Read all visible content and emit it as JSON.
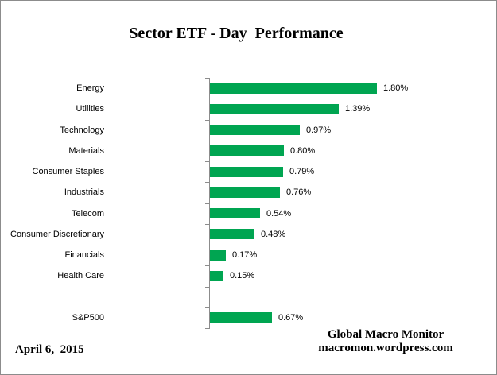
{
  "title": "Sector ETF - Day  Performance",
  "date_label": "April 6,  2015",
  "attribution": {
    "line1": "Global Macro Monitor",
    "line2": "macromon.wordpress.com"
  },
  "colors": {
    "bar": "#00a551",
    "axis": "#8c8c8c",
    "frame_border": "#8c8c8c",
    "text": "#000000"
  },
  "chart_data": {
    "type": "bar",
    "orientation": "horizontal",
    "title": "Sector ETF - Day  Performance",
    "xlabel": "",
    "ylabel": "",
    "xlim": [
      0,
      1.8
    ],
    "grid": false,
    "legend": false,
    "value_label_format": "percent",
    "categories": [
      "Energy",
      "Utilities",
      "Technology",
      "Materials",
      "Consumer Staples",
      "Industrials",
      "Telecom",
      "Consumer Discretionary",
      "Financials",
      "Health Care",
      "",
      "S&P500"
    ],
    "values": [
      1.8,
      1.39,
      0.97,
      0.8,
      0.79,
      0.76,
      0.54,
      0.48,
      0.17,
      0.15,
      null,
      0.67
    ],
    "value_labels": [
      "1.80%",
      "1.39%",
      "0.97%",
      "0.80%",
      "0.79%",
      "0.76%",
      "0.54%",
      "0.48%",
      "0.17%",
      "0.15%",
      "",
      "0.67%"
    ]
  }
}
